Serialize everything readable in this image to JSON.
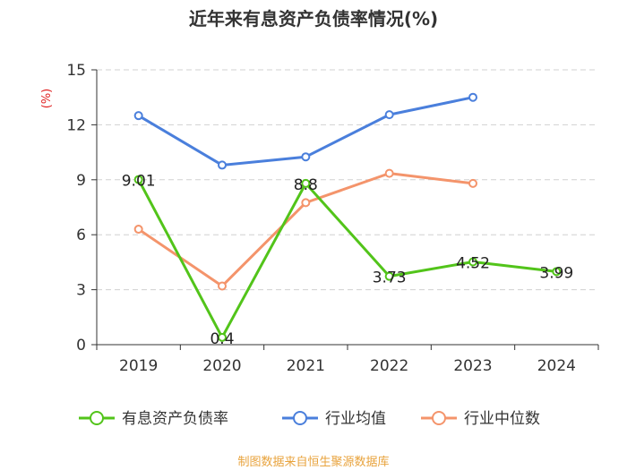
{
  "chart_data": {
    "type": "line",
    "title": "近年来有息资产负债率情况(%)",
    "ylabel": "(%)",
    "xlabel": "",
    "categories": [
      "2019",
      "2020",
      "2021",
      "2022",
      "2023",
      "2024"
    ],
    "ylim": [
      0,
      15
    ],
    "yticks": [
      0,
      3,
      6,
      9,
      12,
      15
    ],
    "grid": true,
    "legend_position": "bottom",
    "series": [
      {
        "name": "有息资产负债率",
        "color": "#52c41a",
        "values": [
          9.01,
          0.4,
          8.8,
          3.73,
          4.52,
          3.99
        ],
        "labels": [
          "9.01",
          "0.4",
          "8.8",
          "3.73",
          "4.52",
          "3.99"
        ]
      },
      {
        "name": "行业均值",
        "color": "#4a7fdc",
        "values": [
          12.5,
          9.8,
          10.25,
          12.55,
          13.5,
          null
        ]
      },
      {
        "name": "行业中位数",
        "color": "#f4946b",
        "values": [
          6.3,
          3.2,
          7.75,
          9.35,
          8.8,
          null
        ]
      }
    ]
  },
  "source": "制图数据来自恒生聚源数据库"
}
